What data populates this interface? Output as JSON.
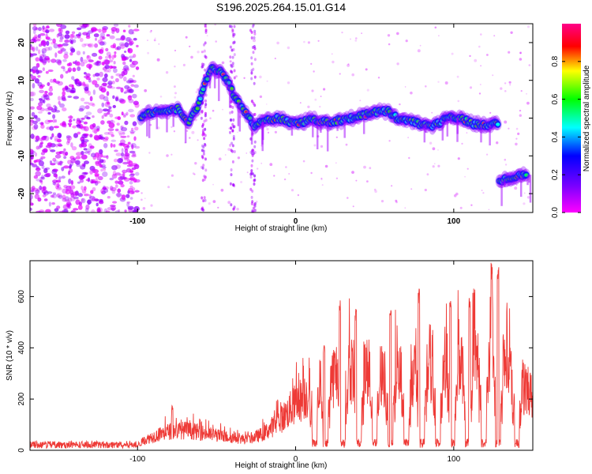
{
  "title": "S196.2025.264.15.01.G14",
  "colors": {
    "snr_line": "#ee3a36",
    "axis": "#000000",
    "cmap": [
      "#ff00ff",
      "#7a00ff",
      "#0000ff",
      "#00ffff",
      "#00ff00",
      "#ffff00",
      "#ff0000",
      "#ff00ff"
    ]
  },
  "chart_data": [
    {
      "type": "heatmap",
      "name": "spectrogram",
      "xlabel": "Height of straight line (km)",
      "ylabel": "Frequency (Hz)",
      "xlim": [
        -168,
        150
      ],
      "ylim": [
        -25,
        25
      ],
      "x_ticks": [
        -100,
        0,
        100
      ],
      "y_ticks": [
        20,
        10,
        0,
        -10,
        -20
      ],
      "colorbar": {
        "label": "Normalized spectral amplitude",
        "range": [
          0,
          1
        ],
        "ticks": [
          "0.0",
          "0.2",
          "0.4",
          "0.6",
          "0.8"
        ]
      },
      "noise_region_x": [
        -168,
        -100
      ],
      "ridge": [
        {
          "x": -98,
          "f": 0.5
        },
        {
          "x": -90,
          "f": 1.5
        },
        {
          "x": -82,
          "f": 1.5
        },
        {
          "x": -74,
          "f": 2.5
        },
        {
          "x": -68,
          "f": -1.5
        },
        {
          "x": -62,
          "f": 3
        },
        {
          "x": -54,
          "f": 13
        },
        {
          "x": -46,
          "f": 12
        },
        {
          "x": -40,
          "f": 7
        },
        {
          "x": -36,
          "f": 4
        },
        {
          "x": -26,
          "f": -2
        },
        {
          "x": -18,
          "f": -0.5
        },
        {
          "x": -10,
          "f": 0
        },
        {
          "x": 0,
          "f": -1.5
        },
        {
          "x": 10,
          "f": -0.5
        },
        {
          "x": 20,
          "f": -1
        },
        {
          "x": 30,
          "f": -0.5
        },
        {
          "x": 40,
          "f": 0.5
        },
        {
          "x": 50,
          "f": 1.5
        },
        {
          "x": 58,
          "f": 2
        },
        {
          "x": 64,
          "f": 0
        },
        {
          "x": 72,
          "f": -0.5
        },
        {
          "x": 78,
          "f": -1.5
        },
        {
          "x": 86,
          "f": -2
        },
        {
          "x": 92,
          "f": -1
        },
        {
          "x": 98,
          "f": 0.5
        },
        {
          "x": 104,
          "f": 0
        },
        {
          "x": 112,
          "f": -1.5
        },
        {
          "x": 120,
          "f": -2
        },
        {
          "x": 126,
          "f": -1.5
        },
        {
          "x": 130,
          "f": -16.5
        },
        {
          "x": 138,
          "f": -15.5
        },
        {
          "x": 146,
          "f": -15
        }
      ]
    },
    {
      "type": "line",
      "name": "snr",
      "xlabel": "Height of straight line (km)",
      "ylabel": "SNR (10 * v/v)",
      "xlim": [
        -168,
        150
      ],
      "ylim": [
        0,
        740
      ],
      "x_ticks": [
        -100,
        0,
        100
      ],
      "y_ticks": [
        0,
        200,
        400,
        600
      ],
      "envelope_x": [
        -168,
        -130,
        -100,
        -92,
        -80,
        -70,
        -60,
        -50,
        -40,
        -30,
        -20,
        -10,
        0,
        10,
        20,
        30,
        40,
        50,
        60,
        70,
        80,
        90,
        100,
        110,
        120,
        125,
        130,
        140,
        150
      ],
      "envelope_y": [
        25,
        25,
        25,
        60,
        90,
        95,
        85,
        70,
        60,
        50,
        80,
        140,
        220,
        280,
        330,
        390,
        380,
        360,
        340,
        350,
        370,
        380,
        390,
        400,
        430,
        560,
        420,
        320,
        250
      ],
      "dips_x": [
        12,
        19,
        30,
        40,
        50,
        60,
        70,
        80,
        90,
        99,
        109,
        119,
        128,
        140
      ],
      "peaks": [
        {
          "x": -78,
          "y": 175
        },
        {
          "x": 18,
          "y": 420
        },
        {
          "x": 28,
          "y": 590
        },
        {
          "x": 38,
          "y": 560
        },
        {
          "x": 60,
          "y": 560
        },
        {
          "x": 78,
          "y": 630
        },
        {
          "x": 98,
          "y": 610
        },
        {
          "x": 110,
          "y": 610
        },
        {
          "x": 124,
          "y": 740
        },
        {
          "x": 128,
          "y": 740
        }
      ]
    }
  ]
}
